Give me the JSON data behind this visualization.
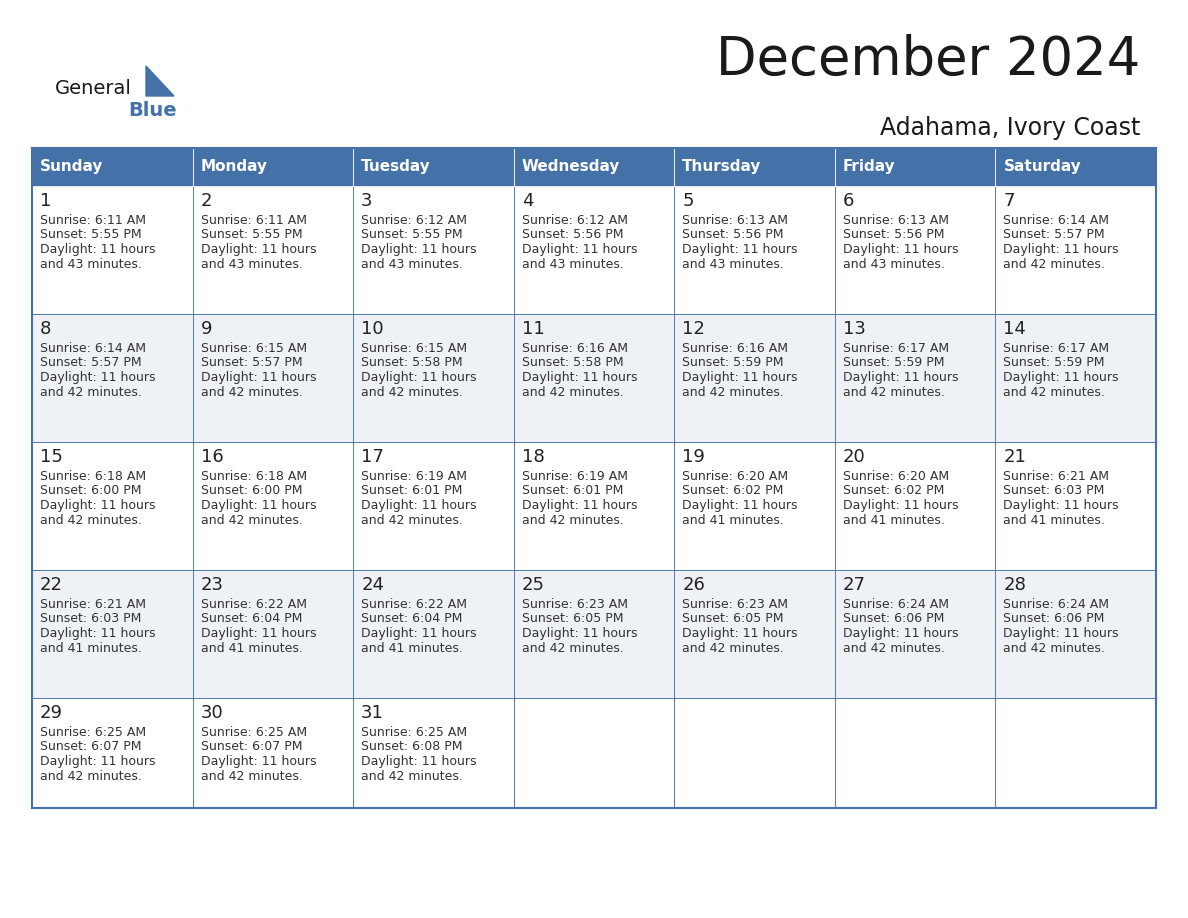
{
  "title": "December 2024",
  "subtitle": "Adahama, Ivory Coast",
  "header_color": "#4472A8",
  "header_text_color": "#FFFFFF",
  "day_names": [
    "Sunday",
    "Monday",
    "Tuesday",
    "Wednesday",
    "Thursday",
    "Friday",
    "Saturday"
  ],
  "cell_bg_even": "#FFFFFF",
  "cell_bg_odd": "#EEF2F7",
  "border_color": "#4472A8",
  "inner_line_color": "#4472A8",
  "day_num_color": "#222222",
  "text_color": "#333333",
  "calendar": [
    [
      {
        "day": 1,
        "sunrise": "6:11 AM",
        "sunset": "5:55 PM",
        "daylight_line1": "Daylight: 11 hours",
        "daylight_line2": "and 43 minutes."
      },
      {
        "day": 2,
        "sunrise": "6:11 AM",
        "sunset": "5:55 PM",
        "daylight_line1": "Daylight: 11 hours",
        "daylight_line2": "and 43 minutes."
      },
      {
        "day": 3,
        "sunrise": "6:12 AM",
        "sunset": "5:55 PM",
        "daylight_line1": "Daylight: 11 hours",
        "daylight_line2": "and 43 minutes."
      },
      {
        "day": 4,
        "sunrise": "6:12 AM",
        "sunset": "5:56 PM",
        "daylight_line1": "Daylight: 11 hours",
        "daylight_line2": "and 43 minutes."
      },
      {
        "day": 5,
        "sunrise": "6:13 AM",
        "sunset": "5:56 PM",
        "daylight_line1": "Daylight: 11 hours",
        "daylight_line2": "and 43 minutes."
      },
      {
        "day": 6,
        "sunrise": "6:13 AM",
        "sunset": "5:56 PM",
        "daylight_line1": "Daylight: 11 hours",
        "daylight_line2": "and 43 minutes."
      },
      {
        "day": 7,
        "sunrise": "6:14 AM",
        "sunset": "5:57 PM",
        "daylight_line1": "Daylight: 11 hours",
        "daylight_line2": "and 42 minutes."
      }
    ],
    [
      {
        "day": 8,
        "sunrise": "6:14 AM",
        "sunset": "5:57 PM",
        "daylight_line1": "Daylight: 11 hours",
        "daylight_line2": "and 42 minutes."
      },
      {
        "day": 9,
        "sunrise": "6:15 AM",
        "sunset": "5:57 PM",
        "daylight_line1": "Daylight: 11 hours",
        "daylight_line2": "and 42 minutes."
      },
      {
        "day": 10,
        "sunrise": "6:15 AM",
        "sunset": "5:58 PM",
        "daylight_line1": "Daylight: 11 hours",
        "daylight_line2": "and 42 minutes."
      },
      {
        "day": 11,
        "sunrise": "6:16 AM",
        "sunset": "5:58 PM",
        "daylight_line1": "Daylight: 11 hours",
        "daylight_line2": "and 42 minutes."
      },
      {
        "day": 12,
        "sunrise": "6:16 AM",
        "sunset": "5:59 PM",
        "daylight_line1": "Daylight: 11 hours",
        "daylight_line2": "and 42 minutes."
      },
      {
        "day": 13,
        "sunrise": "6:17 AM",
        "sunset": "5:59 PM",
        "daylight_line1": "Daylight: 11 hours",
        "daylight_line2": "and 42 minutes."
      },
      {
        "day": 14,
        "sunrise": "6:17 AM",
        "sunset": "5:59 PM",
        "daylight_line1": "Daylight: 11 hours",
        "daylight_line2": "and 42 minutes."
      }
    ],
    [
      {
        "day": 15,
        "sunrise": "6:18 AM",
        "sunset": "6:00 PM",
        "daylight_line1": "Daylight: 11 hours",
        "daylight_line2": "and 42 minutes."
      },
      {
        "day": 16,
        "sunrise": "6:18 AM",
        "sunset": "6:00 PM",
        "daylight_line1": "Daylight: 11 hours",
        "daylight_line2": "and 42 minutes."
      },
      {
        "day": 17,
        "sunrise": "6:19 AM",
        "sunset": "6:01 PM",
        "daylight_line1": "Daylight: 11 hours",
        "daylight_line2": "and 42 minutes."
      },
      {
        "day": 18,
        "sunrise": "6:19 AM",
        "sunset": "6:01 PM",
        "daylight_line1": "Daylight: 11 hours",
        "daylight_line2": "and 42 minutes."
      },
      {
        "day": 19,
        "sunrise": "6:20 AM",
        "sunset": "6:02 PM",
        "daylight_line1": "Daylight: 11 hours",
        "daylight_line2": "and 41 minutes."
      },
      {
        "day": 20,
        "sunrise": "6:20 AM",
        "sunset": "6:02 PM",
        "daylight_line1": "Daylight: 11 hours",
        "daylight_line2": "and 41 minutes."
      },
      {
        "day": 21,
        "sunrise": "6:21 AM",
        "sunset": "6:03 PM",
        "daylight_line1": "Daylight: 11 hours",
        "daylight_line2": "and 41 minutes."
      }
    ],
    [
      {
        "day": 22,
        "sunrise": "6:21 AM",
        "sunset": "6:03 PM",
        "daylight_line1": "Daylight: 11 hours",
        "daylight_line2": "and 41 minutes."
      },
      {
        "day": 23,
        "sunrise": "6:22 AM",
        "sunset": "6:04 PM",
        "daylight_line1": "Daylight: 11 hours",
        "daylight_line2": "and 41 minutes."
      },
      {
        "day": 24,
        "sunrise": "6:22 AM",
        "sunset": "6:04 PM",
        "daylight_line1": "Daylight: 11 hours",
        "daylight_line2": "and 41 minutes."
      },
      {
        "day": 25,
        "sunrise": "6:23 AM",
        "sunset": "6:05 PM",
        "daylight_line1": "Daylight: 11 hours",
        "daylight_line2": "and 42 minutes."
      },
      {
        "day": 26,
        "sunrise": "6:23 AM",
        "sunset": "6:05 PM",
        "daylight_line1": "Daylight: 11 hours",
        "daylight_line2": "and 42 minutes."
      },
      {
        "day": 27,
        "sunrise": "6:24 AM",
        "sunset": "6:06 PM",
        "daylight_line1": "Daylight: 11 hours",
        "daylight_line2": "and 42 minutes."
      },
      {
        "day": 28,
        "sunrise": "6:24 AM",
        "sunset": "6:06 PM",
        "daylight_line1": "Daylight: 11 hours",
        "daylight_line2": "and 42 minutes."
      }
    ],
    [
      {
        "day": 29,
        "sunrise": "6:25 AM",
        "sunset": "6:07 PM",
        "daylight_line1": "Daylight: 11 hours",
        "daylight_line2": "and 42 minutes."
      },
      {
        "day": 30,
        "sunrise": "6:25 AM",
        "sunset": "6:07 PM",
        "daylight_line1": "Daylight: 11 hours",
        "daylight_line2": "and 42 minutes."
      },
      {
        "day": 31,
        "sunrise": "6:25 AM",
        "sunset": "6:08 PM",
        "daylight_line1": "Daylight: 11 hours",
        "daylight_line2": "and 42 minutes."
      },
      null,
      null,
      null,
      null
    ]
  ]
}
